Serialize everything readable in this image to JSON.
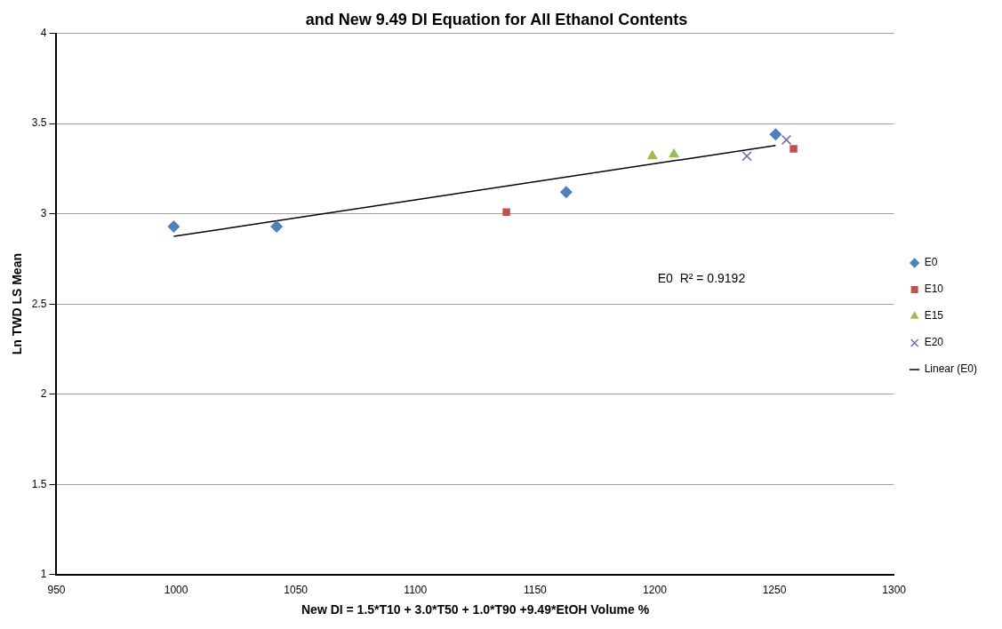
{
  "chart_data": {
    "type": "scatter",
    "title": "and New 9.49 DI Equation for All Ethanol Contents",
    "xlabel": "New DI = 1.5*T10 + 3.0*T50 + 1.0*T90 +9.49*EtOH Volume %",
    "ylabel": "Ln TWD LS Mean",
    "xlim": [
      950,
      1300
    ],
    "xticks": [
      950,
      1000,
      1050,
      1100,
      1150,
      1200,
      1250,
      1300
    ],
    "ylim": [
      1,
      4
    ],
    "yticks": [
      1,
      1.5,
      2,
      2.5,
      3,
      3.5,
      4
    ],
    "grid": "y",
    "legend": "right",
    "annotations": [
      "E0  R² = 0.9192"
    ],
    "series": [
      {
        "name": "E0",
        "color": "#4f81bd",
        "marker": "diamond",
        "x": [
          999,
          1042,
          1163,
          1250.5
        ],
        "values": [
          2.93,
          2.93,
          3.12,
          3.44
        ]
      },
      {
        "name": "E10",
        "color": "#c0504d",
        "marker": "square",
        "x": [
          1138,
          1258
        ],
        "values": [
          3.01,
          3.36
        ]
      },
      {
        "name": "E15",
        "color": "#9bbb59",
        "marker": "triangle",
        "x": [
          1199,
          1208
        ],
        "values": [
          3.32,
          3.33
        ]
      },
      {
        "name": "E20",
        "color": "#8064a2",
        "marker": "cross",
        "x": [
          1238.5,
          1255
        ],
        "values": [
          3.32,
          3.41
        ]
      },
      {
        "name": "Linear (E0)",
        "type": "line",
        "color": "#000000",
        "marker": "none",
        "x": [
          999,
          1250.5
        ],
        "values": [
          2.875,
          3.379
        ]
      }
    ]
  }
}
